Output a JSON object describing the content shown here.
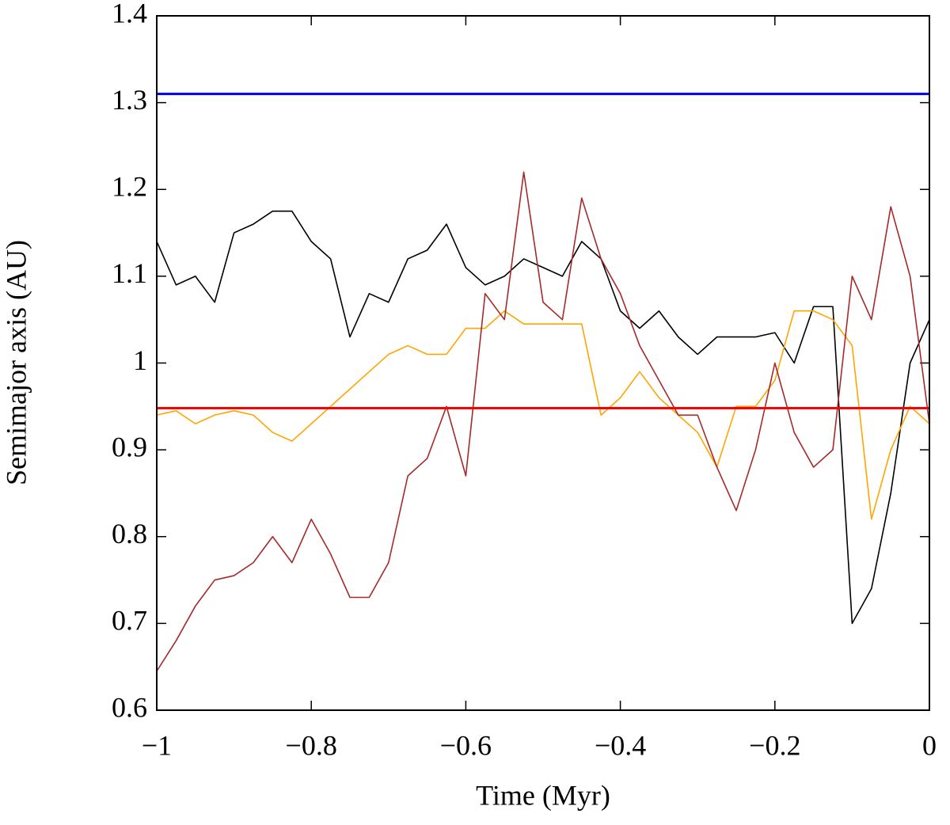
{
  "chart_data": {
    "type": "line",
    "xlabel": "Time (Myr)",
    "ylabel": "Semimajor axis (AU)",
    "x": [
      -1,
      -0.975,
      -0.95,
      -0.925,
      -0.9,
      -0.875,
      -0.85,
      -0.825,
      -0.8,
      -0.775,
      -0.75,
      -0.725,
      -0.7,
      -0.675,
      -0.65,
      -0.625,
      -0.6,
      -0.575,
      -0.55,
      -0.525,
      -0.5,
      -0.475,
      -0.45,
      -0.425,
      -0.4,
      -0.375,
      -0.35,
      -0.325,
      -0.3,
      -0.275,
      -0.25,
      -0.225,
      -0.2,
      -0.175,
      -0.15,
      -0.125,
      -0.1,
      -0.075,
      -0.05,
      -0.025,
      0
    ],
    "series": [
      {
        "color": "#000000",
        "values": [
          1.14,
          1.09,
          1.1,
          1.07,
          1.15,
          1.16,
          1.175,
          1.175,
          1.14,
          1.12,
          1.03,
          1.08,
          1.07,
          1.12,
          1.13,
          1.16,
          1.11,
          1.09,
          1.1,
          1.12,
          1.11,
          1.1,
          1.14,
          1.12,
          1.06,
          1.04,
          1.06,
          1.03,
          1.01,
          1.03,
          1.03,
          1.03,
          1.035,
          1.0,
          1.065,
          1.065,
          0.7,
          0.74,
          0.85,
          1.0,
          1.05
        ]
      },
      {
        "color": "#ffa500",
        "values": [
          0.94,
          0.945,
          0.93,
          0.94,
          0.945,
          0.94,
          0.92,
          0.91,
          0.93,
          0.95,
          0.97,
          0.99,
          1.01,
          1.02,
          1.01,
          1.01,
          1.04,
          1.04,
          1.06,
          1.045,
          1.045,
          1.045,
          1.045,
          0.94,
          0.96,
          0.99,
          0.96,
          0.94,
          0.92,
          0.88,
          0.95,
          0.95,
          0.98,
          1.06,
          1.06,
          1.05,
          1.02,
          0.82,
          0.9,
          0.95,
          0.93
        ]
      },
      {
        "color": "#a52a2a",
        "values": [
          0.645,
          0.68,
          0.72,
          0.75,
          0.755,
          0.77,
          0.8,
          0.77,
          0.82,
          0.78,
          0.73,
          0.73,
          0.77,
          0.87,
          0.89,
          0.95,
          0.87,
          1.08,
          1.05,
          1.22,
          1.07,
          1.05,
          1.19,
          1.12,
          1.08,
          1.02,
          0.98,
          0.94,
          0.94,
          0.88,
          0.83,
          0.9,
          1.0,
          0.92,
          0.88,
          0.9,
          1.1,
          1.05,
          1.18,
          1.1,
          0.93
        ]
      },
      {
        "color": "#0000ff",
        "x": [
          -1,
          0
        ],
        "values": [
          1.31,
          1.31
        ]
      },
      {
        "color": "#ff0000",
        "x": [
          -1,
          0
        ],
        "values": [
          0.948,
          0.948
        ]
      }
    ],
    "xlim": [
      -1,
      0
    ],
    "ylim": [
      0.6,
      1.4
    ],
    "xticks": [
      {
        "value": -1,
        "label": "−1"
      },
      {
        "value": -0.8,
        "label": "−0.8"
      },
      {
        "value": -0.6,
        "label": "−0.6"
      },
      {
        "value": -0.4,
        "label": "−0.4"
      },
      {
        "value": -0.2,
        "label": "−0.2"
      },
      0
    ],
    "yticks": [
      0.6,
      0.7,
      0.8,
      0.9,
      1,
      1.1,
      1.2,
      1.3,
      1.4
    ],
    "grid": false
  }
}
